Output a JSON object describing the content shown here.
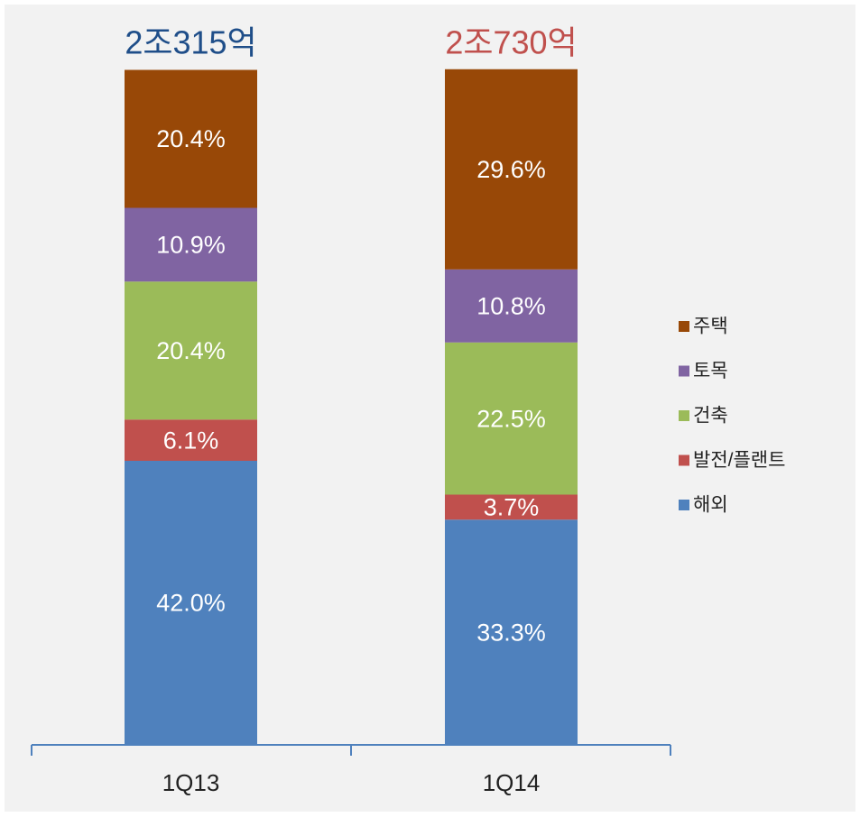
{
  "chart_data": {
    "type": "stacked_bar",
    "categories": [
      "1Q13",
      "1Q14"
    ],
    "annotations": [
      {
        "text": "2조315억",
        "color": "#1f4e89"
      },
      {
        "text": "2조730억",
        "color": "#c0504d"
      }
    ],
    "series": [
      {
        "name": "해외",
        "color": "#4f81bd",
        "values": [
          42.0,
          33.3
        ],
        "value_labels": [
          "42.0%",
          "33.3%"
        ]
      },
      {
        "name": "발전/플랜트",
        "color": "#c0504d",
        "values": [
          6.1,
          3.7
        ],
        "value_labels": [
          "6.1%",
          "3.7%"
        ]
      },
      {
        "name": "건축",
        "color": "#9bbb59",
        "values": [
          20.4,
          22.5
        ],
        "value_labels": [
          "20.4%",
          "22.5%"
        ]
      },
      {
        "name": "토목",
        "color": "#8064a2",
        "values": [
          10.9,
          10.8
        ],
        "value_labels": [
          "10.9%",
          "10.8%"
        ]
      },
      {
        "name": "주택",
        "color": "#984807",
        "values": [
          20.4,
          29.6
        ],
        "value_labels": [
          "20.4%",
          "29.6%"
        ]
      }
    ],
    "ylim": [
      0,
      100
    ]
  }
}
